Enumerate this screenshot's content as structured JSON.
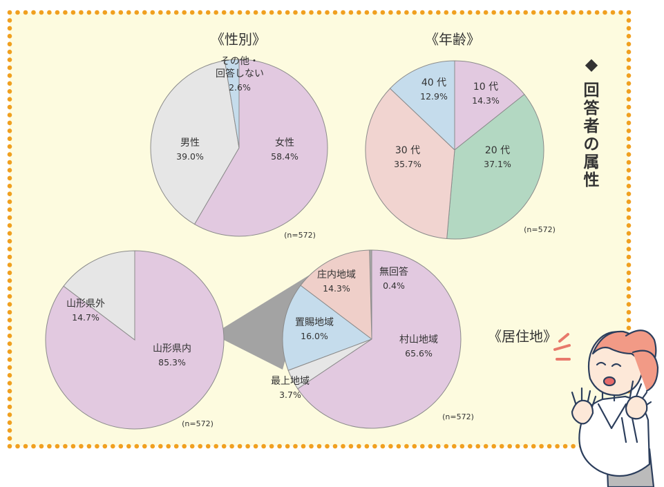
{
  "colors": {
    "panel_bg": "#fdfbdf",
    "dot_border": "#f0a020",
    "accent": "#7a4a15",
    "pink": "#e2c9e0",
    "grey": "#e6e6e6",
    "light_blue": "#c5dcec",
    "green": "#b3d8c2",
    "salmon": "#f1d4d0",
    "beige_pink": "#efcfc9",
    "dark_grey": "#aaaaaa",
    "connector": "#a3a3a3",
    "slice_edge": "#8a8a8a"
  },
  "heading": {
    "text": "回答者の属性",
    "marker": "◆"
  },
  "chart_data": [
    {
      "type": "pie",
      "title": "《性別》",
      "note": "(n=572)",
      "slices": [
        {
          "label": "女性",
          "value": 58.4,
          "display": "58.4%",
          "color": "#e2c9e0"
        },
        {
          "label": "男性",
          "value": 39.0,
          "display": "39.0%",
          "color": "#e6e6e6"
        },
        {
          "label": "その他・回答しない",
          "label_lines": [
            "その他・",
            "回答しない"
          ],
          "value": 2.6,
          "display": "2.6%",
          "color": "#c5dcec"
        }
      ]
    },
    {
      "type": "pie",
      "title": "《年齢》",
      "note": "(n=572)",
      "slices": [
        {
          "label": "10 代",
          "value": 14.3,
          "display": "14.3%",
          "color": "#e2c9e0"
        },
        {
          "label": "20 代",
          "value": 37.1,
          "display": "37.1%",
          "color": "#b3d8c2"
        },
        {
          "label": "30 代",
          "value": 35.7,
          "display": "35.7%",
          "color": "#f1d4d0"
        },
        {
          "label": "40 代",
          "value": 12.9,
          "display": "12.9%",
          "color": "#c5dcec"
        }
      ]
    },
    {
      "type": "pie",
      "title": "《居住地》",
      "note": "(n=572)",
      "slices": [
        {
          "label": "山形県内",
          "value": 85.3,
          "display": "85.3%",
          "color": "#e2c9e0"
        },
        {
          "label": "山形県外",
          "value": 14.7,
          "display": "14.7%",
          "color": "#e6e6e6"
        }
      ]
    },
    {
      "type": "pie",
      "title": "",
      "note": "(n=572)",
      "slices": [
        {
          "label": "村山地域",
          "value": 65.6,
          "display": "65.6%",
          "color": "#e2c9e0"
        },
        {
          "label": "最上地域",
          "value": 3.7,
          "display": "3.7%",
          "color": "#e6e6e6"
        },
        {
          "label": "置賜地域",
          "value": 16.0,
          "display": "16.0%",
          "color": "#c5dcec"
        },
        {
          "label": "庄内地域",
          "value": 14.3,
          "display": "14.3%",
          "color": "#efcfc9"
        },
        {
          "label": "無回答",
          "value": 0.4,
          "display": "0.4%",
          "color": "#aaaaaa"
        }
      ]
    }
  ]
}
